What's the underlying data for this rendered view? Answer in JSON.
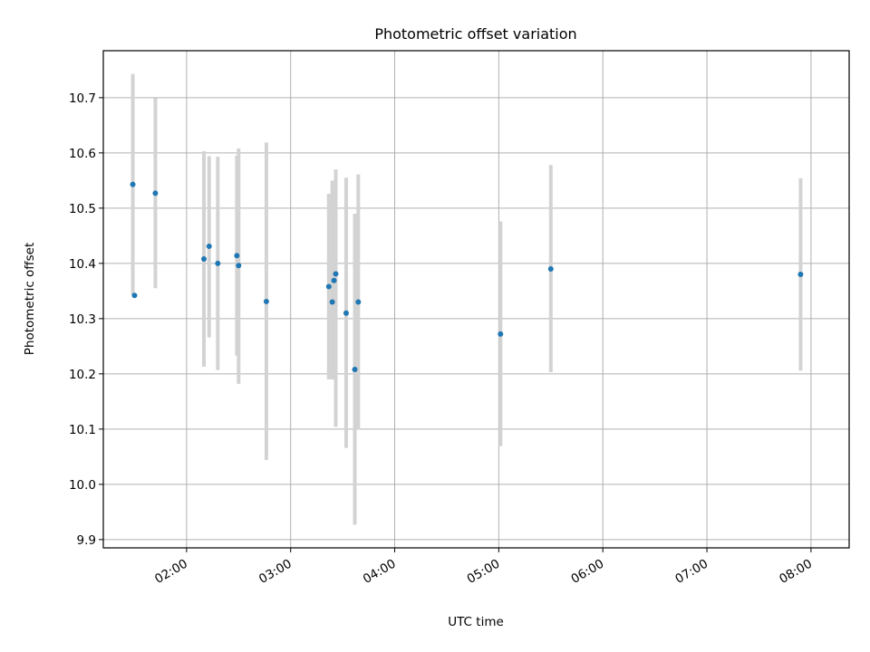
{
  "chart_data": {
    "type": "scatter",
    "title": "Photometric offset variation",
    "xlabel": "UTC time",
    "ylabel": "Photometric offset",
    "x_ticks": [
      "02:00",
      "03:00",
      "04:00",
      "05:00",
      "06:00",
      "07:00",
      "08:00"
    ],
    "y_ticks": [
      "9.9",
      "10.0",
      "10.1",
      "10.2",
      "10.3",
      "10.4",
      "10.5",
      "10.6",
      "10.7"
    ],
    "xlim": [
      "01:12",
      "08:22"
    ],
    "ylim": [
      9.885,
      10.785
    ],
    "grid": true,
    "marker_color": "#1f77b4",
    "errorbar_color": "#d3d3d3",
    "points": [
      {
        "x": "01:29",
        "y": 10.543,
        "ylow": 10.343,
        "yhigh": 10.743
      },
      {
        "x": "01:30",
        "y": 10.342,
        "ylow": 10.342,
        "yhigh": 10.342
      },
      {
        "x": "01:42",
        "y": 10.527,
        "ylow": 10.355,
        "yhigh": 10.699
      },
      {
        "x": "02:10",
        "y": 10.408,
        "ylow": 10.213,
        "yhigh": 10.603
      },
      {
        "x": "02:13",
        "y": 10.431,
        "ylow": 10.266,
        "yhigh": 10.594
      },
      {
        "x": "02:18",
        "y": 10.4,
        "ylow": 10.207,
        "yhigh": 10.593
      },
      {
        "x": "02:29",
        "y": 10.414,
        "ylow": 10.233,
        "yhigh": 10.595
      },
      {
        "x": "02:30",
        "y": 10.396,
        "ylow": 10.182,
        "yhigh": 10.608
      },
      {
        "x": "02:46",
        "y": 10.331,
        "ylow": 10.044,
        "yhigh": 10.619
      },
      {
        "x": "03:22",
        "y": 10.358,
        "ylow": 10.19,
        "yhigh": 10.526
      },
      {
        "x": "03:24",
        "y": 10.33,
        "ylow": 10.19,
        "yhigh": 10.55
      },
      {
        "x": "03:25",
        "y": 10.369,
        "ylow": 10.2,
        "yhigh": 10.54
      },
      {
        "x": "03:26",
        "y": 10.381,
        "ylow": 10.104,
        "yhigh": 10.57
      },
      {
        "x": "03:32",
        "y": 10.31,
        "ylow": 10.066,
        "yhigh": 10.555
      },
      {
        "x": "03:37",
        "y": 10.208,
        "ylow": 9.927,
        "yhigh": 10.49
      },
      {
        "x": "03:39",
        "y": 10.33,
        "ylow": 10.099,
        "yhigh": 10.561
      },
      {
        "x": "05:01",
        "y": 10.272,
        "ylow": 10.069,
        "yhigh": 10.476
      },
      {
        "x": "05:30",
        "y": 10.39,
        "ylow": 10.203,
        "yhigh": 10.578
      },
      {
        "x": "07:54",
        "y": 10.38,
        "ylow": 10.206,
        "yhigh": 10.554
      }
    ]
  }
}
